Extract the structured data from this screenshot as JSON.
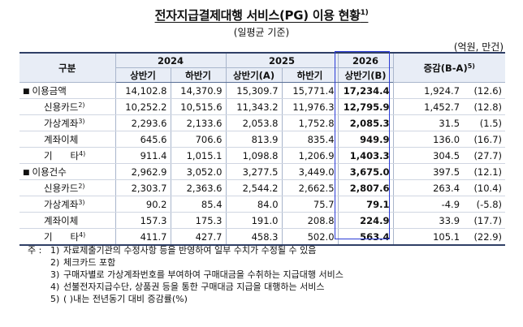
{
  "title": {
    "text": "전자지급결제대행 서비스(PG) 이용 현황",
    "sup": "1)"
  },
  "subtitle": "(일평균 기준)",
  "unit": "(억원, 만건)",
  "table": {
    "header": {
      "category": "구분",
      "years": [
        "2024",
        "2025",
        "2026"
      ],
      "halves": [
        "상반기",
        "하반기",
        "상반기(A)",
        "하반기",
        "상반기(B)"
      ],
      "change": "증감(B-A)",
      "change_sup": "5)"
    },
    "rows": [
      {
        "label": "이용금액",
        "marker": "■",
        "level": 0,
        "sup": "",
        "values": [
          "14,102.8",
          "14,370.9",
          "15,309.7",
          "15,771.4",
          "17,234.4"
        ],
        "diff": "1,924.7",
        "rate": "(12.6)"
      },
      {
        "label": "신용카드",
        "marker": "",
        "level": 1,
        "sup": "2)",
        "values": [
          "10,252.2",
          "10,515.6",
          "11,343.2",
          "11,976.3",
          "12,795.9"
        ],
        "diff": "1,452.7",
        "rate": "(12.8)"
      },
      {
        "label": "가상계좌",
        "marker": "",
        "level": 1,
        "sup": "3)",
        "values": [
          "2,293.6",
          "2,133.6",
          "2,053.8",
          "1,752.8",
          "2,085.3"
        ],
        "diff": "31.5",
        "rate": "(1.5)"
      },
      {
        "label": "계좌이체",
        "marker": "",
        "level": 1,
        "sup": "",
        "values": [
          "645.6",
          "706.6",
          "813.9",
          "835.4",
          "949.9"
        ],
        "diff": "136.0",
        "rate": "(16.7)"
      },
      {
        "label": "기      타",
        "marker": "",
        "level": 1,
        "sup": "4)",
        "values": [
          "911.4",
          "1,015.1",
          "1,098.8",
          "1,206.9",
          "1,403.3"
        ],
        "diff": "304.5",
        "rate": "(27.7)"
      },
      {
        "label": "이용건수",
        "marker": "■",
        "level": 0,
        "sup": "",
        "values": [
          "2,962.9",
          "3,052.0",
          "3,277.5",
          "3,449.0",
          "3,675.0"
        ],
        "diff": "397.5",
        "rate": "(12.1)"
      },
      {
        "label": "신용카드",
        "marker": "",
        "level": 1,
        "sup": "2)",
        "values": [
          "2,303.7",
          "2,363.6",
          "2,544.2",
          "2,662.5",
          "2,807.6"
        ],
        "diff": "263.4",
        "rate": "(10.4)"
      },
      {
        "label": "가상계좌",
        "marker": "",
        "level": 1,
        "sup": "3)",
        "values": [
          "90.2",
          "85.4",
          "84.0",
          "75.7",
          "79.1"
        ],
        "diff": "-4.9",
        "rate": "(-5.8)"
      },
      {
        "label": "계좌이체",
        "marker": "",
        "level": 1,
        "sup": "",
        "values": [
          "157.3",
          "175.3",
          "191.0",
          "208.8",
          "224.9"
        ],
        "diff": "33.9",
        "rate": "(17.7)"
      },
      {
        "label": "기      타",
        "marker": "",
        "level": 1,
        "sup": "4)",
        "values": [
          "411.7",
          "427.7",
          "458.3",
          "502.0",
          "563.4"
        ],
        "diff": "105.1",
        "rate": "(22.9)"
      }
    ]
  },
  "notes": {
    "lead": "주 :",
    "items": [
      {
        "num": "1)",
        "text": "자료제출기관의 수정사항 등을 반영하여 일부 수치가 수정될 수 있음"
      },
      {
        "num": "2)",
        "text": "체크카드 포함"
      },
      {
        "num": "3)",
        "text": "구매자별로 가상계좌번호를 부여하여 구매대금을 수취하는 지급대행 서비스"
      },
      {
        "num": "4)",
        "text": "선불전자지급수단, 상품권 등을 통한 구매대금 지급을 대행하는 서비스"
      },
      {
        "num": "5)",
        "text": "(  )내는 전년동기 대비 증감률(%)"
      }
    ]
  },
  "colors": {
    "header_bg": "#e8edf6",
    "highlight_border": "#2a3bd6",
    "rule": "#2f3f66"
  }
}
